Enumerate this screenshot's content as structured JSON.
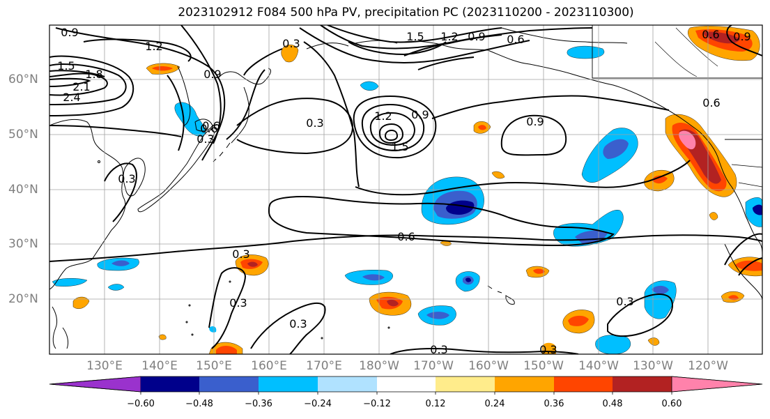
{
  "title": "2023102912 F084 500 hPa PV, precipitation PC (2023110200 - 2023110300)",
  "lat_labels": [
    "60°N",
    "50°N",
    "40°N",
    "30°N",
    "20°N"
  ],
  "lon_labels": [
    "130°E",
    "140°E",
    "150°E",
    "160°E",
    "170°E",
    "180°W",
    "170°W",
    "160°W",
    "150°W",
    "140°W",
    "130°W",
    "120°W"
  ],
  "contour_labels": [
    "0.9",
    "1.2",
    "1.5",
    "1.8",
    "2.1",
    "2.4",
    "0.3",
    "0.9",
    "0.6",
    "0.3",
    "1.5",
    "1.2",
    "0.9",
    "0.6",
    "1.2",
    "0.9",
    "1.5",
    "0.6",
    "0.9",
    "0.6",
    "0.3",
    "0.3",
    "0.3",
    "0.3",
    "0.3",
    "0.3",
    "0.3",
    "0.9",
    "0.6",
    "0.6",
    "0.3"
  ],
  "colorbar": {
    "ticks": [
      "−0.60",
      "−0.48",
      "−0.36",
      "−0.24",
      "−0.12",
      "0.12",
      "0.24",
      "0.36",
      "0.48",
      "0.60"
    ],
    "colors": [
      "#9a32cd",
      "#00008b",
      "#3a5fcd",
      "#00bfff",
      "#b0e2ff",
      "#ffffff",
      "#ffec8b",
      "#ffa500",
      "#ff4500",
      "#b22222",
      "#ff82ab"
    ]
  },
  "legend_colors": {
    "neg_very_strong": "#00008b",
    "neg_strong": "#3a5fcd",
    "neg_mid": "#00bfff",
    "neg_weak": "#b0e2ff",
    "pos_weak": "#ffec8b",
    "pos_mid": "#ffa500",
    "pos_strong": "#ff4500",
    "pos_very_strong": "#b22222",
    "pos_extreme": "#ff82ab"
  }
}
